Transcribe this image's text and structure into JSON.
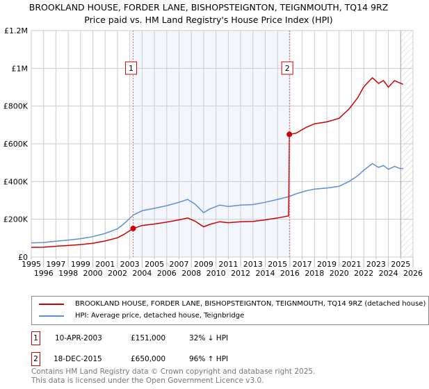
{
  "title": "BROOKLAND HOUSE, FORDER LANE, BISHOPSTEIGNTON, TEIGNMOUTH, TQ14 9RZ",
  "subtitle": "Price paid vs. HM Land Registry's House Price Index (HPI)",
  "chart_data": {
    "type": "line",
    "xlim": [
      1995,
      2026
    ],
    "ylim": [
      0,
      1200000
    ],
    "x_ticks": [
      "1995",
      "1996",
      "1997",
      "1998",
      "1999",
      "2000",
      "2001",
      "2002",
      "2003",
      "2004",
      "2005",
      "2006",
      "2007",
      "2008",
      "2009",
      "2010",
      "2011",
      "2012",
      "2013",
      "2014",
      "2015",
      "2016",
      "2017",
      "2018",
      "2019",
      "2020",
      "2021",
      "2022",
      "2023",
      "2024",
      "2025",
      "2026"
    ],
    "y_ticks": [
      {
        "v": 0,
        "label": "£0"
      },
      {
        "v": 200000,
        "label": "£200K"
      },
      {
        "v": 400000,
        "label": "£400K"
      },
      {
        "v": 600000,
        "label": "£600K"
      },
      {
        "v": 800000,
        "label": "£800K"
      },
      {
        "v": 1000000,
        "label": "£1M"
      },
      {
        "v": 1200000,
        "label": "£1.2M"
      }
    ],
    "shaded_range": [
      2003.27,
      2015.96
    ],
    "future_hatch_from": 2025.0,
    "series": [
      {
        "name": "BROOKLAND HOUSE, FORDER LANE, BISHOPSTEIGNTON, TEIGNMOUTH, TQ14 9RZ (detached house)",
        "color": "#cc0000",
        "x": [
          1995,
          1996,
          1997,
          1998,
          1999,
          2000,
          2001,
          2002,
          2002.5,
          2003.27,
          2004,
          2005,
          2006,
          2007,
          2007.7,
          2008.3,
          2009,
          2009.5,
          2010.3,
          2011,
          2012,
          2013,
          2014,
          2015,
          2015.9,
          2015.96,
          2016.5,
          2017.3,
          2018,
          2019,
          2020,
          2020.8,
          2021.5,
          2022,
          2022.7,
          2023.2,
          2023.6,
          2024,
          2024.5,
          2025,
          2025.2
        ],
        "y": [
          51000,
          52000,
          57000,
          61000,
          66000,
          73000,
          85000,
          102000,
          119000,
          151000,
          167000,
          175000,
          185000,
          197000,
          207000,
          190000,
          160000,
          173000,
          187000,
          182000,
          187000,
          189000,
          197000,
          207000,
          218000,
          650000,
          656000,
          686000,
          706000,
          716000,
          735000,
          784000,
          843000,
          902000,
          950000,
          920000,
          935000,
          900000,
          935000,
          920000,
          915000
        ]
      },
      {
        "name": "HPI: Average price, detached house, Teignbridge",
        "color": "#5b8fd4",
        "x": [
          1995,
          1996,
          1997,
          1998,
          1999,
          2000,
          2001,
          2002,
          2002.5,
          2003.27,
          2004,
          2005,
          2006,
          2007,
          2007.7,
          2008.3,
          2009,
          2009.5,
          2010.3,
          2011,
          2012,
          2013,
          2014,
          2015,
          2015.9,
          2016.5,
          2017.3,
          2018,
          2019,
          2020,
          2020.8,
          2021.5,
          2022,
          2022.7,
          2023.2,
          2023.6,
          2024,
          2024.5,
          2025,
          2025.2
        ],
        "y": [
          75000,
          77000,
          84000,
          90000,
          97000,
          108000,
          125000,
          150000,
          175000,
          222000,
          245000,
          258000,
          272000,
          290000,
          305000,
          280000,
          235000,
          255000,
          275000,
          268000,
          275000,
          278000,
          290000,
          305000,
          320000,
          335000,
          350000,
          360000,
          365000,
          375000,
          400000,
          430000,
          460000,
          495000,
          475000,
          485000,
          465000,
          480000,
          468000,
          470000
        ]
      }
    ],
    "sales": [
      {
        "id": "1",
        "x": 2003.27,
        "y": 151000,
        "date": "10-APR-2003",
        "price": "£151,000",
        "hpi": "32% ↓ HPI"
      },
      {
        "id": "2",
        "x": 2015.96,
        "y": 650000,
        "date": "18-DEC-2015",
        "price": "£650,000",
        "hpi": "96% ↑ HPI"
      }
    ]
  },
  "legend": {
    "property": "BROOKLAND HOUSE, FORDER LANE, BISHOPSTEIGNTON, TEIGNMOUTH, TQ14 9RZ (detached house)",
    "hpi": "HPI: Average price, detached house, Teignbridge"
  },
  "footer": {
    "line1": "Contains HM Land Registry data © Crown copyright and database right 2025.",
    "line2": "This data is licensed under the Open Government Licence v3.0."
  }
}
